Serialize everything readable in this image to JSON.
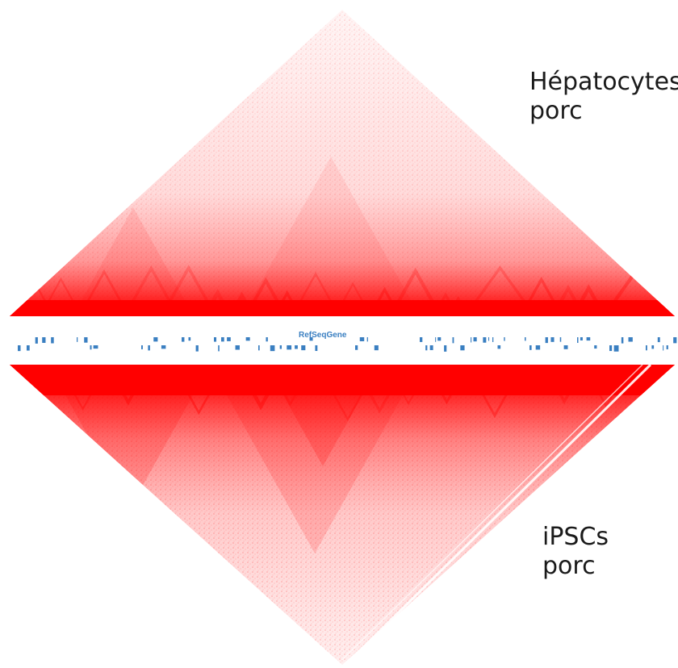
{
  "labels": {
    "top": {
      "line1": "Hépatocytes",
      "line2": "porc"
    },
    "bottom": {
      "line1": "iPSCs",
      "line2": "porc"
    }
  },
  "track": {
    "title": "RefSeqGene"
  },
  "colors": {
    "contact": "#ff0000",
    "gene": "#3a7fc1",
    "background": "#ffffff"
  }
}
